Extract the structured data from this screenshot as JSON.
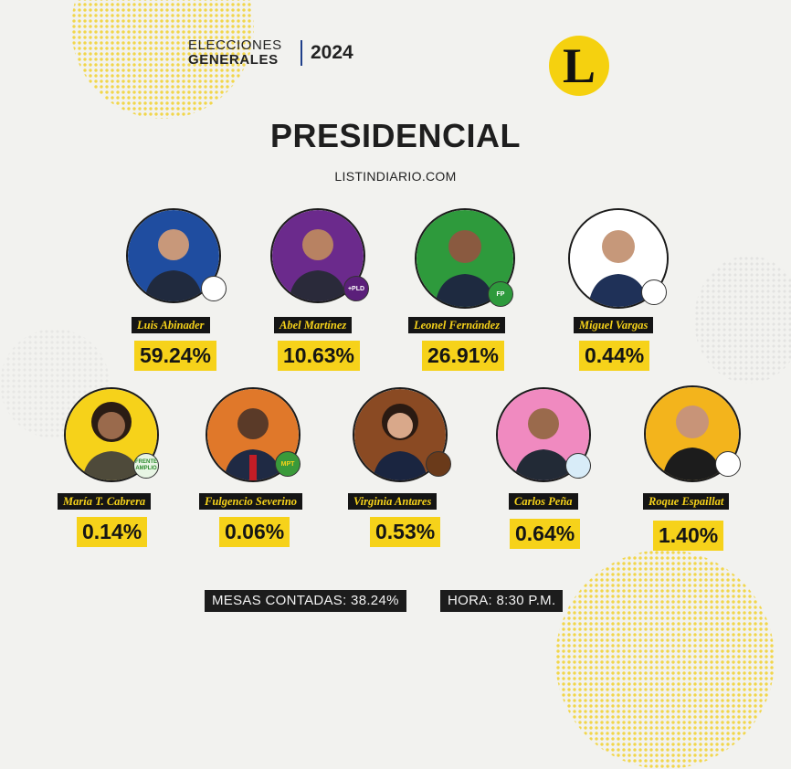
{
  "header": {
    "line1": "ELECCIONES",
    "line2": "GENERALES",
    "year": "2024",
    "logo_letter": "L"
  },
  "title": "PRESIDENCIAL",
  "website": "LISTINDIARIO.COM",
  "candidates": [
    {
      "name": "Luis Abinader",
      "percent": "59.24%",
      "bg": "#1f4da0"
    },
    {
      "name": "Abel Martínez",
      "percent": "10.63%",
      "bg": "#6b2a8c",
      "badge": "+PLD"
    },
    {
      "name": "Leonel Fernández",
      "percent": "26.91%",
      "bg": "#2e9a3c",
      "badge": "FP"
    },
    {
      "name": "Miguel Vargas",
      "percent": "0.44%",
      "bg": "#ffffff"
    },
    {
      "name": "María T. Cabrera",
      "percent": "0.14%",
      "bg": "#f6d21a",
      "badge": "FRENTE AMPLIO"
    },
    {
      "name": "Fulgencio Severino",
      "percent": "0.06%",
      "bg": "#e0782a",
      "badge": "MPT"
    },
    {
      "name": "Virginia Antares",
      "percent": "0.53%",
      "bg": "#8a4a23"
    },
    {
      "name": "Carlos Peña",
      "percent": "0.64%",
      "bg": "#f08ac0"
    },
    {
      "name": "Roque Espaillat",
      "percent": "1.40%",
      "bg": "#f3b41c"
    }
  ],
  "footer": {
    "mesas": "MESAS CONTADAS: 38.24%",
    "hora": "HORA: 8:30 P.M."
  }
}
